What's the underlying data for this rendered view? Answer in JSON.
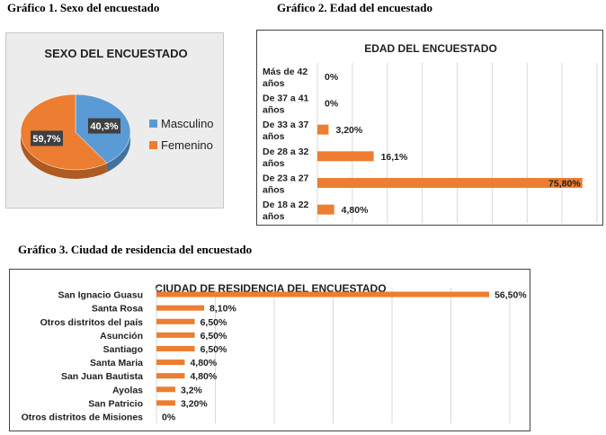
{
  "captions": {
    "c1": "Gráfico 1. Sexo del encuestado",
    "c2": "Gráfico 2. Edad del encuestado",
    "c3": "Gráfico 3. Ciudad de residencia del encuestado"
  },
  "colors": {
    "blue": "#5b9bd5",
    "orange": "#ed7d31",
    "grid": "#d9d9d9"
  },
  "chart_data": [
    {
      "type": "pie",
      "title": "SEXO DEL ENCUESTADO",
      "categories": [
        "Masculino",
        "Femenino"
      ],
      "values": [
        40.3,
        59.7
      ],
      "labels": [
        "40,3%",
        "59,7%"
      ],
      "legend": "right"
    },
    {
      "type": "bar",
      "orientation": "horizontal",
      "title": "EDAD DEL ENCUESTADO",
      "categories": [
        [
          "Más de 42",
          "años"
        ],
        [
          "De 37 a 41",
          "años"
        ],
        [
          "De 33 a 37",
          "años"
        ],
        [
          "De 28 a 32",
          "años"
        ],
        [
          "De 23 a 27",
          "años"
        ],
        [
          "De 18 a 22",
          "años"
        ]
      ],
      "values": [
        0,
        0,
        3.2,
        16.1,
        75.8,
        4.8
      ],
      "labels": [
        "0%",
        "0%",
        "3,20%",
        "16,1%",
        "75,80%",
        "4,80%"
      ],
      "xlim": [
        0,
        80
      ],
      "grid": true
    },
    {
      "type": "bar",
      "orientation": "horizontal",
      "title": "CIUDAD DE RESIDENCIA DEL ENCUESTADO",
      "categories": [
        "San Ignacio Guasu",
        "Santa Rosa",
        "Otros distritos del país",
        "Asunción",
        "Santiago",
        "Santa Maria",
        "San Juan Bautista",
        "Ayolas",
        "San Patricio",
        "Otros distritos de Misiones"
      ],
      "values": [
        56.5,
        8.1,
        6.5,
        6.5,
        6.5,
        4.8,
        4.8,
        3.2,
        3.2,
        0
      ],
      "labels": [
        "56,50%",
        "8,10%",
        "6,50%",
        "6,50%",
        "6,50%",
        "4,80%",
        "4,80%",
        "3,2%",
        "3,20%",
        "0%"
      ],
      "xlim": [
        0,
        60
      ],
      "grid": true
    }
  ]
}
